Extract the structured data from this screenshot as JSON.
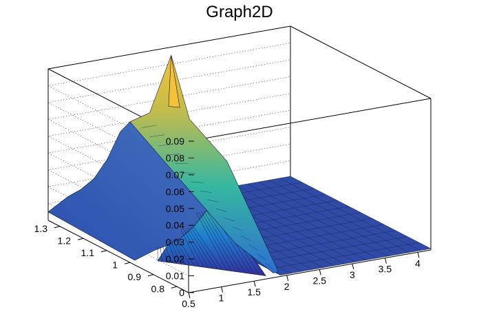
{
  "chart_data": {
    "type": "surface3d",
    "title": "Graph2D",
    "x_ticks": [
      "0.5",
      "1",
      "1.5",
      "2",
      "2.5",
      "3",
      "3.5",
      "4"
    ],
    "y_ticks": [
      "0.8",
      "0.9",
      "1",
      "1.1",
      "1.2",
      "1.3"
    ],
    "z_ticks": [
      "0",
      "0.01",
      "0.02",
      "0.03",
      "0.04",
      "0.05",
      "0.06",
      "0.07",
      "0.08",
      "0.09"
    ],
    "xlim": [
      0.5,
      4.2
    ],
    "ylim": [
      0.75,
      1.35
    ],
    "zlim": [
      0,
      0.09
    ],
    "grid": true,
    "colormap": [
      "#352a87",
      "#2e4fb5",
      "#1077d8",
      "#1f9bcf",
      "#36b8a0",
      "#79c260",
      "#c4bc4b",
      "#f4c13b",
      "#f9e51d"
    ],
    "features": {
      "gap_x": [
        1.75,
        1.9
      ],
      "peak": {
        "x": 2.2,
        "y": 1.3,
        "z": 0.09
      },
      "plateau_x_end": 1.75,
      "flat_region_x": [
        1.9,
        4.2
      ],
      "edge_profile": {
        "x": [
          0.5,
          0.8,
          1.0,
          1.2,
          1.4,
          1.6,
          1.75
        ],
        "z": [
          0.005,
          0.012,
          0.015,
          0.02,
          0.03,
          0.045,
          0.05
        ]
      }
    }
  }
}
